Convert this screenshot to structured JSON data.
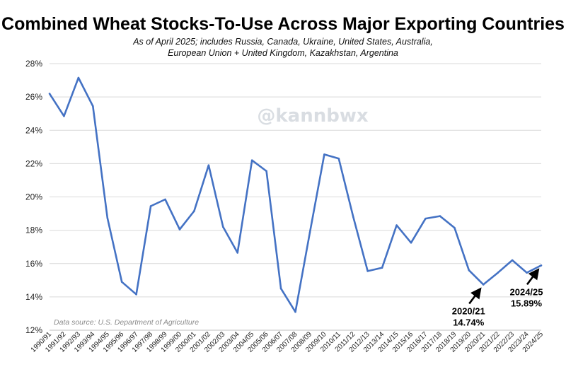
{
  "title": "Combined Wheat Stocks-To-Use Across Major Exporting Countries",
  "subtitle_line1": "As of April 2025; includes Russia, Canada, Ukraine, United States, Australia,",
  "subtitle_line2": "European Union + United Kingdom, Kazakhstan, Argentina",
  "watermark": "@kannbwx",
  "source": "Data source: U.S. Department of Agriculture",
  "colors": {
    "line": "#4472C4",
    "grid": "#d9d9d9"
  },
  "chart_data": {
    "type": "line",
    "ylim": [
      12,
      28
    ],
    "yticks": [
      12,
      14,
      16,
      18,
      20,
      22,
      24,
      26,
      28
    ],
    "ytick_labels": [
      "12%",
      "14%",
      "16%",
      "18%",
      "20%",
      "22%",
      "24%",
      "26%",
      "28%"
    ],
    "grid": true,
    "categories": [
      "1990/91",
      "1991/92",
      "1992/93",
      "1993/94",
      "1994/95",
      "1995/96",
      "1996/97",
      "1997/98",
      "1998/99",
      "1999/00",
      "2000/01",
      "2001/02",
      "2002/03",
      "2003/04",
      "2004/05",
      "2005/06",
      "2006/07",
      "2007/08",
      "2008/09",
      "2009/10",
      "2010/11",
      "2011/12",
      "2012/13",
      "2013/14",
      "2014/15",
      "2015/16",
      "2016/17",
      "2017/18",
      "2018/19",
      "2019/20",
      "2020/21",
      "2021/22",
      "2022/23",
      "2023/24",
      "2024/25"
    ],
    "series": [
      {
        "values": [
          26.2,
          24.85,
          27.15,
          25.45,
          18.75,
          14.9,
          14.15,
          19.45,
          19.85,
          18.05,
          19.15,
          21.9,
          18.2,
          16.65,
          22.2,
          21.55,
          14.5,
          13.1,
          17.85,
          22.55,
          22.3,
          18.8,
          15.55,
          15.75,
          18.3,
          17.25,
          18.7,
          18.85,
          18.15,
          15.6,
          14.74,
          15.45,
          16.2,
          15.45,
          15.89
        ]
      }
    ],
    "annotations": [
      {
        "category": "2020/21",
        "label_period": "2020/21",
        "label_value": "14.74%"
      },
      {
        "category": "2024/25",
        "label_period": "2024/25",
        "label_value": "15.89%"
      }
    ]
  }
}
